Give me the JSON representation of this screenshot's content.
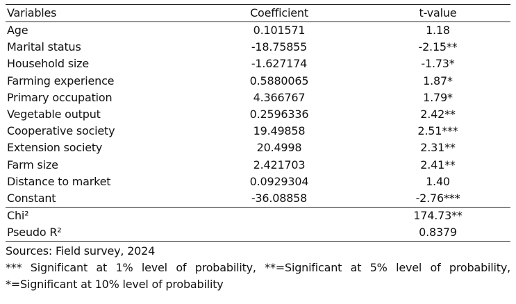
{
  "table": {
    "headers": [
      "Variables",
      "Coefficient",
      "t-value"
    ],
    "rows": [
      {
        "variable": "Age",
        "coefficient": "0.101571",
        "t_value": "1.18"
      },
      {
        "variable": "Marital status",
        "coefficient": "-18.75855",
        "t_value": "-2.15**"
      },
      {
        "variable": "Household size",
        "coefficient": "-1.627174",
        "t_value": "-1.73*"
      },
      {
        "variable": "Farming experience",
        "coefficient": "0.5880065",
        "t_value": "1.87*"
      },
      {
        "variable": "Primary occupation",
        "coefficient": "4.366767",
        "t_value": "1.79*"
      },
      {
        "variable": "Vegetable output",
        "coefficient": "0.2596336",
        "t_value": "2.42**"
      },
      {
        "variable": "Cooperative society",
        "coefficient": "19.49858",
        "t_value": "2.51***"
      },
      {
        "variable": "Extension society",
        "coefficient": "20.4998",
        "t_value": "2.31**"
      },
      {
        "variable": "Farm size",
        "coefficient": "2.421703",
        "t_value": "2.41**"
      },
      {
        "variable": "Distance to market",
        "coefficient": "0.0929304",
        "t_value": "1.40"
      },
      {
        "variable": "Constant",
        "coefficient": "-36.08858",
        "t_value": "-2.76***"
      }
    ],
    "stats": [
      {
        "label": "Chi²",
        "value": "174.73**"
      },
      {
        "label": "Pseudo R²",
        "value": "0.8379"
      }
    ]
  },
  "notes": {
    "source": "Sources: Field survey, 2024",
    "significance_line1": "*** Significant at 1% level of probability, **=Significant at 5% level of probability,",
    "significance_line2": "*=Significant at 10% level of probability"
  }
}
